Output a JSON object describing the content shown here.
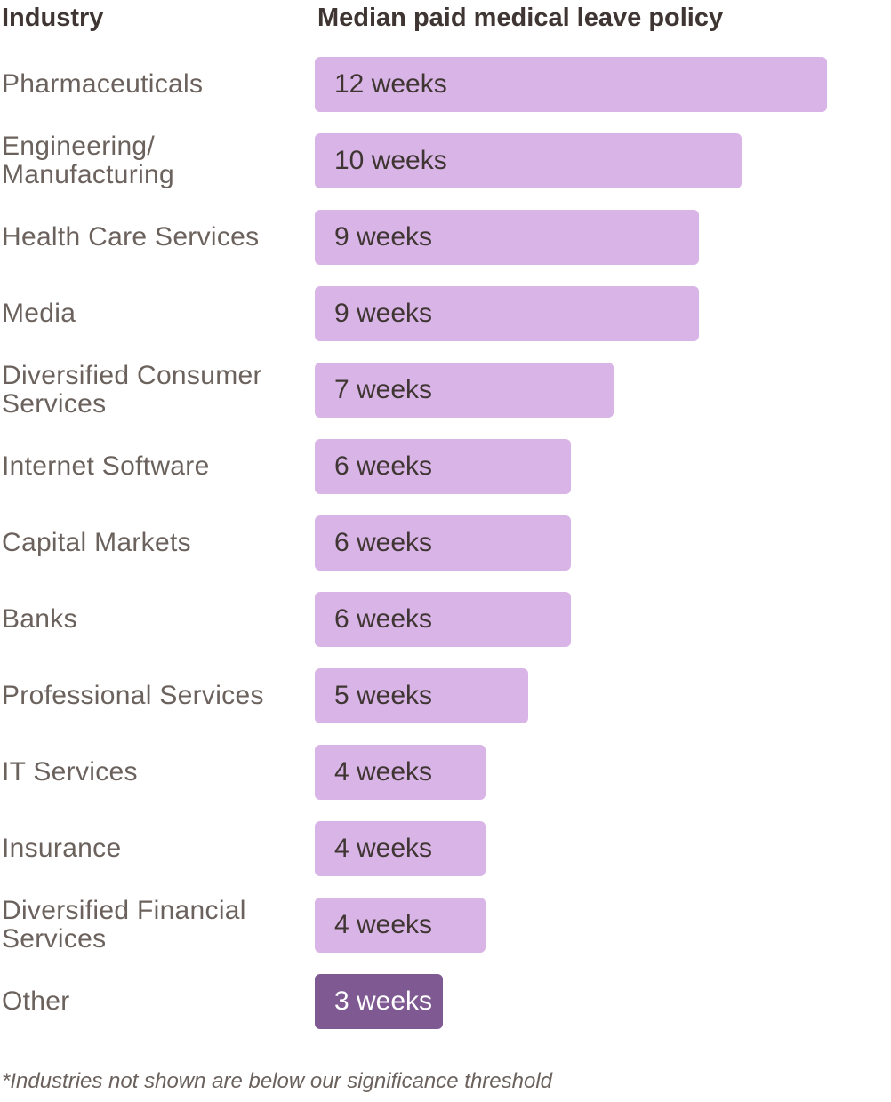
{
  "headers": {
    "industry": "Industry",
    "policy": "Median paid medical leave policy"
  },
  "footnote": "*Industries not shown are below our significance threshold",
  "colors": {
    "bar": "#d9b4e6",
    "bar_highlight": "#7f5a92",
    "label_text": "#6b625d",
    "header_text": "#3f3633"
  },
  "chart_data": {
    "type": "bar",
    "orientation": "horizontal",
    "title": "",
    "xlabel": "Median paid medical leave policy",
    "ylabel": "Industry",
    "unit": "weeks",
    "xlim": [
      0,
      12
    ],
    "grid": false,
    "legend": "none",
    "categories": [
      "Pharmaceuticals",
      "Engineering/ Manufacturing",
      "Health Care Services",
      "Media",
      "Diversified Consumer Services",
      "Internet Software",
      "Capital Markets",
      "Banks",
      "Professional Services",
      "IT Services",
      "Insurance",
      "Diversified Financial Services",
      "Other"
    ],
    "values": [
      12,
      10,
      9,
      9,
      7,
      6,
      6,
      6,
      5,
      4,
      4,
      4,
      3
    ],
    "data_labels": [
      "12 weeks",
      "10 weeks",
      "9 weeks",
      "9 weeks",
      "7 weeks",
      "6 weeks",
      "6 weeks",
      "6 weeks",
      "5 weeks",
      "4 weeks",
      "4 weeks",
      "4 weeks",
      "3 weeks"
    ],
    "highlighted": [
      "Other"
    ]
  }
}
